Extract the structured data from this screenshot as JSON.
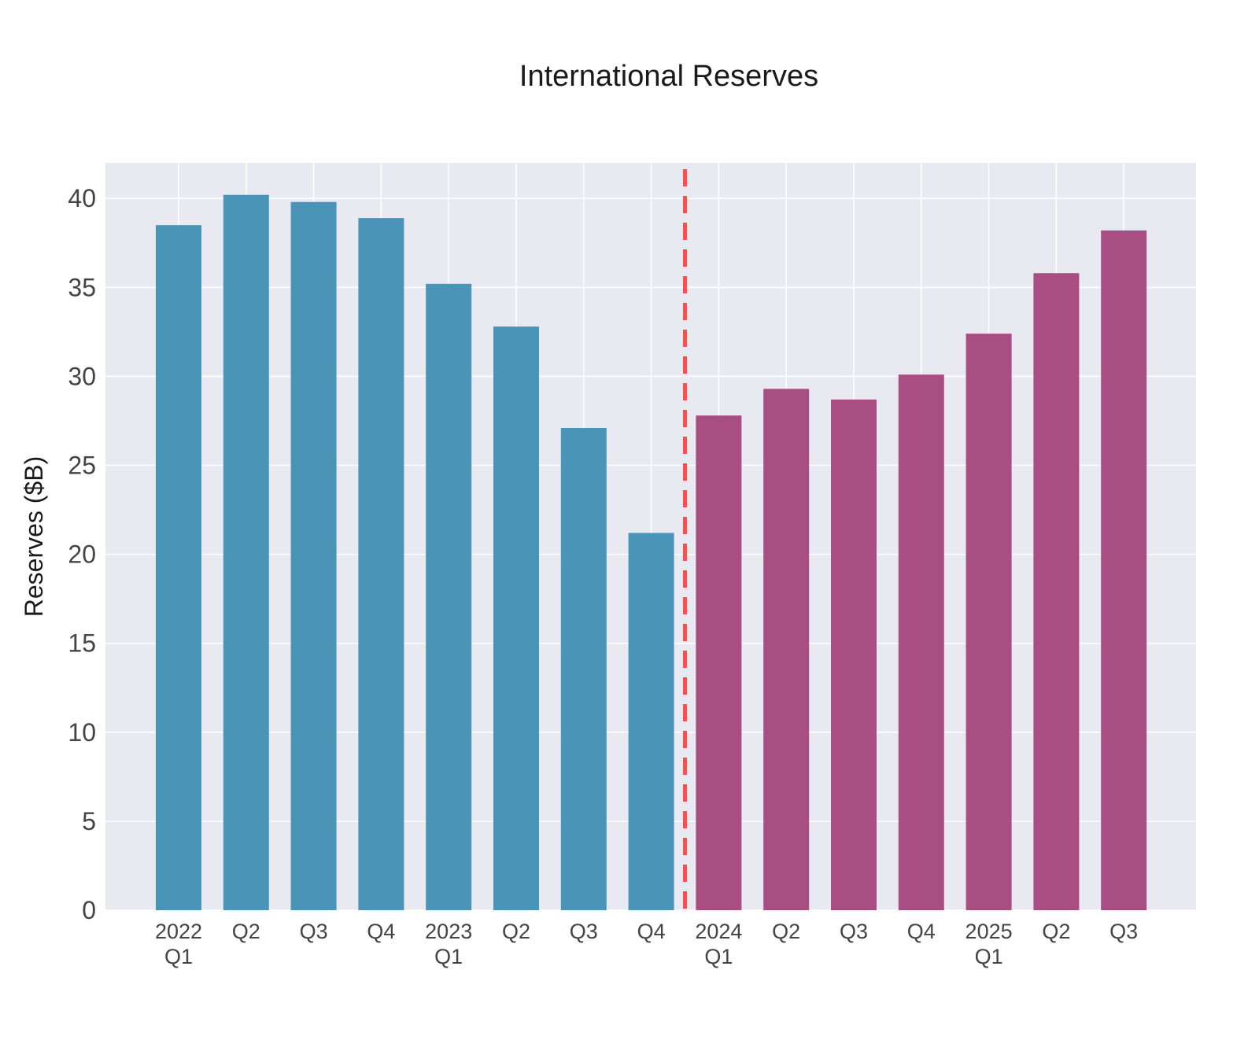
{
  "chart_data": {
    "type": "bar",
    "title": "International Reserves",
    "xlabel": "",
    "ylabel": "Reserves ($B)",
    "ylim": [
      0,
      42
    ],
    "yticks": [
      0,
      5,
      10,
      15,
      20,
      25,
      30,
      35,
      40
    ],
    "grid": true,
    "categories": [
      [
        "2022",
        "Q1"
      ],
      [
        "Q2"
      ],
      [
        "Q3"
      ],
      [
        "Q4"
      ],
      [
        "2023",
        "Q1"
      ],
      [
        "Q2"
      ],
      [
        "Q3"
      ],
      [
        "Q4"
      ],
      [
        "2024",
        "Q1"
      ],
      [
        "Q2"
      ],
      [
        "Q3"
      ],
      [
        "Q4"
      ],
      [
        "2025",
        "Q1"
      ],
      [
        "Q2"
      ],
      [
        "Q3"
      ]
    ],
    "values": [
      38.5,
      40.2,
      39.8,
      38.9,
      35.2,
      32.8,
      27.1,
      21.2,
      27.8,
      29.3,
      28.7,
      30.1,
      32.4,
      35.8,
      38.2
    ],
    "groups": [
      {
        "from": 0,
        "to": 7,
        "color": "#4a94b8"
      },
      {
        "from": 8,
        "to": 14,
        "color": "#a94e82"
      }
    ],
    "divider": {
      "between": [
        7,
        8
      ],
      "color": "#ff4d4d",
      "style": "dashed"
    },
    "plot_background": "#e9e9f1",
    "grid_color": "#ffffff"
  }
}
